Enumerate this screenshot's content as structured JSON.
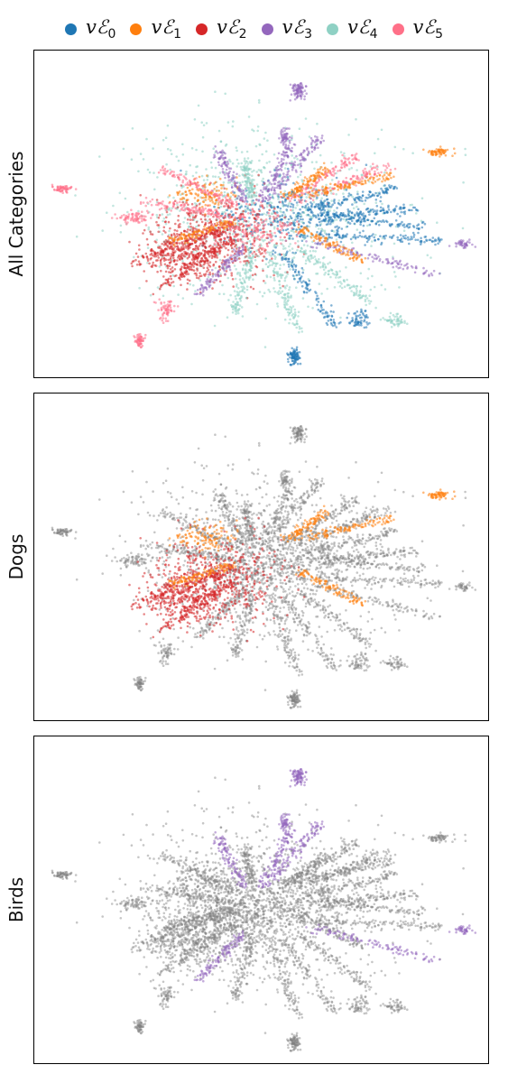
{
  "legend": [
    {
      "base": "vℰ",
      "sub": "0",
      "color": "#1f77b4"
    },
    {
      "base": "vℰ",
      "sub": "1",
      "color": "#ff7f0e"
    },
    {
      "base": "vℰ",
      "sub": "2",
      "color": "#d62728"
    },
    {
      "base": "vℰ",
      "sub": "3",
      "color": "#9467bd"
    },
    {
      "base": "vℰ",
      "sub": "4",
      "color": "#8fd1c4"
    },
    {
      "base": "vℰ",
      "sub": "5",
      "color": "#ff7088"
    }
  ],
  "chart_data": [
    {
      "type": "scatter",
      "ylabel": "All Categories",
      "background_color": "#808080",
      "colored_groups": [
        "vℰ₀",
        "vℰ₁",
        "vℰ₂",
        "vℰ₃",
        "vℰ₄",
        "vℰ₅"
      ],
      "axes_ticks": "none"
    },
    {
      "type": "scatter",
      "ylabel": "Dogs",
      "background_color": "#808080",
      "colored_groups": [
        "vℰ₁",
        "vℰ₂"
      ],
      "axes_ticks": "none"
    },
    {
      "type": "scatter",
      "ylabel": "Birds",
      "background_color": "#808080",
      "colored_groups": [
        "vℰ₃"
      ],
      "axes_ticks": "none"
    }
  ],
  "clusters": [
    {
      "x": 50,
      "y": 50,
      "sx": 26,
      "sy": 24,
      "n": 900,
      "g": 4
    },
    {
      "x": 57,
      "y": 50,
      "sx": 16,
      "sy": 10,
      "n": 350,
      "g": 0
    },
    {
      "x": 40,
      "y": 57,
      "sx": 13,
      "sy": 11,
      "n": 500,
      "g": 2
    },
    {
      "x": 33,
      "y": 62,
      "sx": 8,
      "sy": 8,
      "n": 300,
      "g": 2
    },
    {
      "x": 48,
      "y": 54,
      "sx": 9,
      "sy": 7,
      "n": 180,
      "g": 5
    },
    {
      "x": 38,
      "y": 44,
      "sx": 6,
      "sy": 4,
      "n": 120,
      "g": 1
    },
    {
      "x": 58,
      "y": 12,
      "sx": 1.3,
      "sy": 2.5,
      "n": 90,
      "g": 3
    },
    {
      "x": 55,
      "y": 26,
      "sx": 1,
      "sy": 2,
      "n": 50,
      "g": 3
    },
    {
      "x": 57,
      "y": 93,
      "sx": 1.2,
      "sy": 2,
      "n": 90,
      "g": 0
    },
    {
      "x": 23,
      "y": 88,
      "sx": 0.9,
      "sy": 2,
      "n": 60,
      "g": 5
    },
    {
      "x": 6,
      "y": 42,
      "sx": 2.5,
      "sy": 1,
      "n": 60,
      "g": 5
    },
    {
      "x": 89,
      "y": 31,
      "sx": 2.5,
      "sy": 1.3,
      "n": 60,
      "g": 1
    },
    {
      "x": 94,
      "y": 59,
      "sx": 2,
      "sy": 1,
      "n": 40,
      "g": 3
    },
    {
      "x": 71,
      "y": 82,
      "sx": 2,
      "sy": 2.5,
      "n": 60,
      "g": 0
    },
    {
      "x": 29,
      "y": 79,
      "sx": 2,
      "sy": 3,
      "n": 60,
      "g": 5
    },
    {
      "x": 22,
      "y": 51,
      "sx": 3,
      "sy": 1.5,
      "n": 70,
      "g": 5
    },
    {
      "x": 79,
      "y": 82,
      "sx": 2,
      "sy": 2,
      "n": 50,
      "g": 4
    }
  ],
  "spokes": [
    {
      "x1": 50,
      "y1": 46,
      "x2": 56,
      "y2": 28,
      "g": 3
    },
    {
      "x1": 52,
      "y1": 44,
      "x2": 63,
      "y2": 26,
      "g": 3
    },
    {
      "x1": 55,
      "y1": 46,
      "x2": 71,
      "y2": 32,
      "g": 5
    },
    {
      "x1": 58,
      "y1": 46,
      "x2": 78,
      "y2": 35,
      "g": 5
    },
    {
      "x1": 60,
      "y1": 48,
      "x2": 80,
      "y2": 42,
      "g": 0
    },
    {
      "x1": 62,
      "y1": 51,
      "x2": 84,
      "y2": 48,
      "g": 0
    },
    {
      "x1": 62,
      "y1": 56,
      "x2": 90,
      "y2": 58,
      "g": 0
    },
    {
      "x1": 60,
      "y1": 58,
      "x2": 88,
      "y2": 68,
      "g": 3
    },
    {
      "x1": 58,
      "y1": 60,
      "x2": 75,
      "y2": 78,
      "g": 4
    },
    {
      "x1": 55,
      "y1": 62,
      "x2": 66,
      "y2": 84,
      "g": 0
    },
    {
      "x1": 52,
      "y1": 62,
      "x2": 58,
      "y2": 86,
      "g": 4
    },
    {
      "x1": 48,
      "y1": 61,
      "x2": 44,
      "y2": 80,
      "g": 4
    },
    {
      "x1": 46,
      "y1": 60,
      "x2": 36,
      "y2": 74,
      "g": 3
    },
    {
      "x1": 44,
      "y1": 57,
      "x2": 28,
      "y2": 72,
      "g": 2
    },
    {
      "x1": 42,
      "y1": 54,
      "x2": 22,
      "y2": 64,
      "g": 2
    },
    {
      "x1": 42,
      "y1": 50,
      "x2": 24,
      "y2": 46,
      "g": 5
    },
    {
      "x1": 44,
      "y1": 47,
      "x2": 28,
      "y2": 36,
      "g": 5
    },
    {
      "x1": 46,
      "y1": 45,
      "x2": 40,
      "y2": 30,
      "g": 3
    },
    {
      "x1": 60,
      "y1": 44,
      "x2": 78,
      "y2": 38,
      "g": 1
    },
    {
      "x1": 58,
      "y1": 54,
      "x2": 72,
      "y2": 64,
      "g": 1
    },
    {
      "x1": 48,
      "y1": 44,
      "x2": 46,
      "y2": 34,
      "g": 4
    },
    {
      "x1": 56,
      "y1": 44,
      "x2": 64,
      "y2": 36,
      "g": 1
    },
    {
      "x1": 44,
      "y1": 52,
      "x2": 30,
      "y2": 58,
      "g": 1
    },
    {
      "x1": 62,
      "y1": 50,
      "x2": 86,
      "y2": 54,
      "g": 0
    }
  ]
}
